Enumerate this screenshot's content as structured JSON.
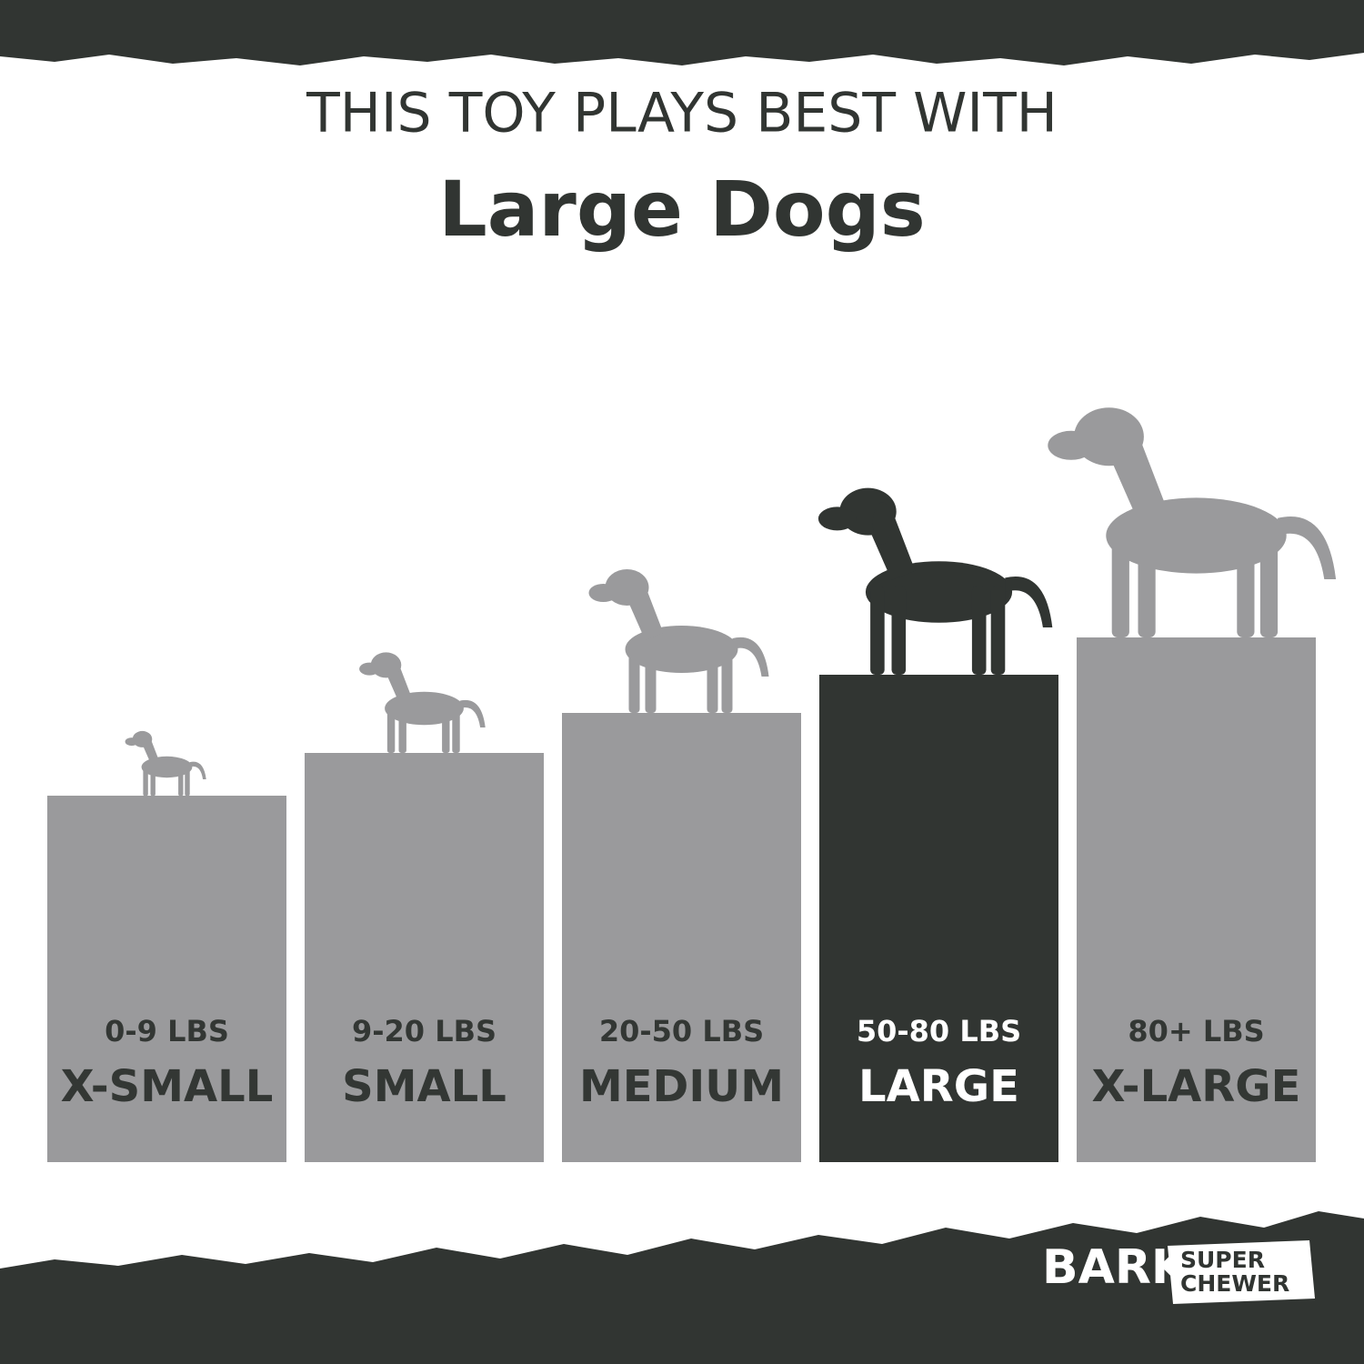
{
  "header": {
    "line1": "THIS TOY PLAYS BEST WITH",
    "line2": "Large Dogs"
  },
  "sizes": [
    {
      "weight": "0-9 LBS",
      "label": "X-SMALL",
      "color": "#9a9a9c",
      "text_color": "#333734"
    },
    {
      "weight": "9-20 LBS",
      "label": "SMALL",
      "color": "#9a9a9c",
      "text_color": "#333734"
    },
    {
      "weight": "20-50 LBS",
      "label": "MEDIUM",
      "color": "#9a9a9c",
      "text_color": "#333734"
    },
    {
      "weight": "50-80 LBS",
      "label": "LARGE",
      "color": "#313532",
      "text_color": "#ffffff"
    },
    {
      "weight": "80+ LBS",
      "label": "X-LARGE",
      "color": "#9a9a9c",
      "text_color": "#333734"
    }
  ],
  "logo": {
    "brand": "BARK",
    "line1": "SUPER",
    "line2": "CHEWER"
  }
}
